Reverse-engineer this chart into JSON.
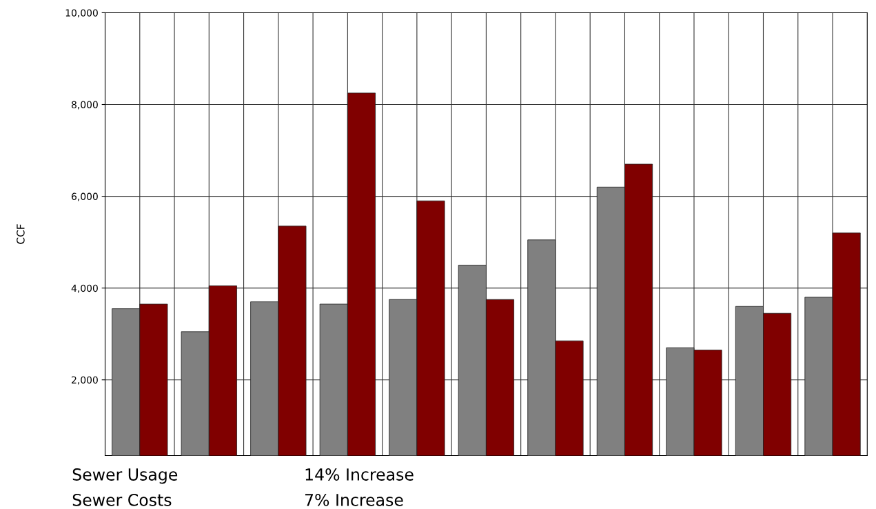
{
  "chart_data": {
    "type": "bar",
    "ylabel": "CCF",
    "categories": [
      null,
      null,
      null,
      null,
      null,
      null,
      null,
      null,
      null,
      null,
      null
    ],
    "series": [
      {
        "color": "#808080",
        "values": [
          3550,
          3050,
          3700,
          3650,
          3750,
          4500,
          5050,
          6200,
          2700,
          3600,
          3800
        ]
      },
      {
        "color": "#800000",
        "values": [
          3650,
          4050,
          5350,
          8250,
          5900,
          3750,
          2850,
          6700,
          2650,
          3450,
          5200
        ]
      }
    ],
    "ylim": [
      350,
      10000
    ],
    "yticks": [
      {
        "value": 2000,
        "label": "2,000"
      },
      {
        "value": 4000,
        "label": "4,000"
      },
      {
        "value": 6000,
        "label": "6,000"
      },
      {
        "value": 8000,
        "label": "8,000"
      },
      {
        "value": 10000,
        "label": "10,000"
      }
    ],
    "grid": true,
    "tick_labels": "y",
    "annotations": [
      "Sewer Usage",
      "14% Increase",
      "Sewer Costs",
      "7% Increase"
    ]
  }
}
